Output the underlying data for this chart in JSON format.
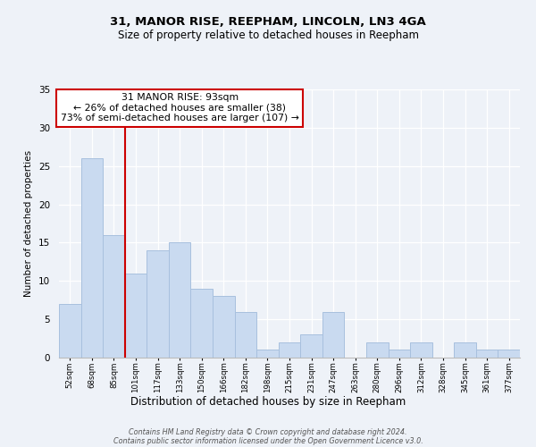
{
  "title": "31, MANOR RISE, REEPHAM, LINCOLN, LN3 4GA",
  "subtitle": "Size of property relative to detached houses in Reepham",
  "xlabel": "Distribution of detached houses by size in Reepham",
  "ylabel": "Number of detached properties",
  "bin_labels": [
    "52sqm",
    "68sqm",
    "85sqm",
    "101sqm",
    "117sqm",
    "133sqm",
    "150sqm",
    "166sqm",
    "182sqm",
    "198sqm",
    "215sqm",
    "231sqm",
    "247sqm",
    "263sqm",
    "280sqm",
    "296sqm",
    "312sqm",
    "328sqm",
    "345sqm",
    "361sqm",
    "377sqm"
  ],
  "bar_heights": [
    7,
    26,
    16,
    11,
    14,
    15,
    9,
    8,
    6,
    1,
    2,
    3,
    6,
    0,
    2,
    1,
    2,
    0,
    2,
    1,
    1
  ],
  "bar_color": "#c9daf0",
  "bar_edge_color": "#a8c0de",
  "vline_x_index": 2.5,
  "vline_color": "#cc0000",
  "annotation_title": "31 MANOR RISE: 93sqm",
  "annotation_line1": "← 26% of detached houses are smaller (38)",
  "annotation_line2": "73% of semi-detached houses are larger (107) →",
  "annotation_box_color": "#ffffff",
  "annotation_box_edge": "#cc0000",
  "ylim": [
    0,
    35
  ],
  "yticks": [
    0,
    5,
    10,
    15,
    20,
    25,
    30,
    35
  ],
  "footer1": "Contains HM Land Registry data © Crown copyright and database right 2024.",
  "footer2": "Contains public sector information licensed under the Open Government Licence v3.0.",
  "bg_color": "#eef2f8"
}
